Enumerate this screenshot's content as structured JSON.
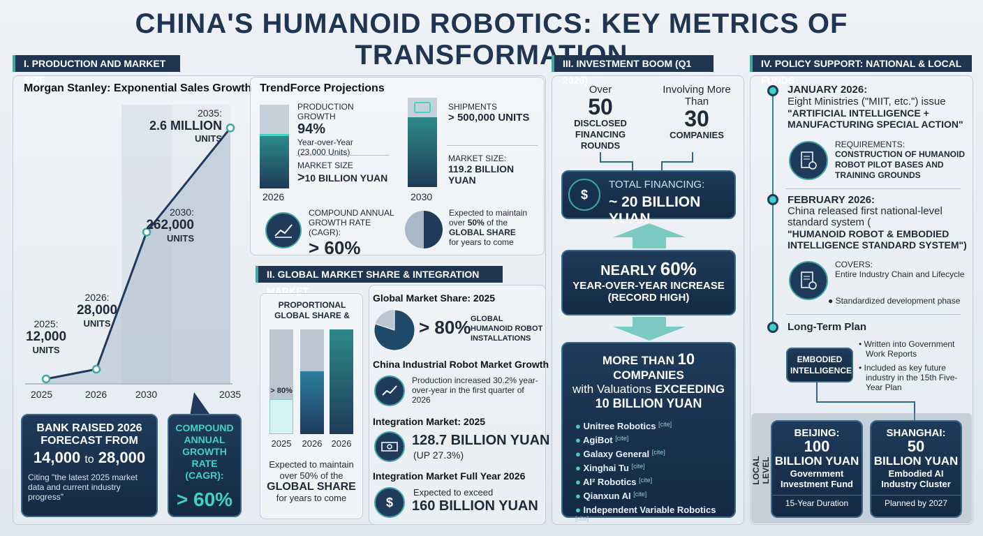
{
  "title": "CHINA'S HUMANOID ROBOTICS: KEY METRICS OF TRANSFORMATION",
  "sec1": {
    "header": "I. PRODUCTION AND MARKET SIZE",
    "ms_title": "Morgan Stanley: Exponential Sales Growth",
    "pts": [
      {
        "year": "2025:",
        "val": "12,000",
        "unit": "UNITS"
      },
      {
        "year": "2026:",
        "val": "28,000",
        "unit": "UNITS"
      },
      {
        "year": "2030:",
        "val": "262,000",
        "unit": "UNITS"
      },
      {
        "year": "2035:",
        "val": "2.6 MILLION",
        "unit": "UNITS"
      }
    ],
    "xticks": [
      "2025",
      "2026",
      "2030",
      "2035"
    ],
    "bank_title": "BANK RAISED 2026 FORECAST FROM",
    "bank_from": "14,000",
    "bank_to_word": "to",
    "bank_to": "28,000",
    "bank_cite": "Citing \"the latest 2025 market data and current industry progress\"",
    "cagr_title": "COMPOUND ANNUAL GROWTH RATE (CAGR):",
    "cagr_val": "> 60%",
    "tf_title": "TrendForce Projections",
    "tf_pg_label": "PRODUCTION GROWTH",
    "tf_pg_val": "94%",
    "tf_pg_sub1": "Year-over-Year",
    "tf_pg_sub2": "(23,000 Units)",
    "tf_ms_label": "MARKET SIZE",
    "tf_ms_prefix": ">",
    "tf_ms_val": "10 BILLION YUAN",
    "tf_y1": "2026",
    "tf_ship_label": "SHIPMENTS",
    "tf_ship_prefix": ">",
    "tf_ship_val": "500,000 UNITS",
    "tf_ms2_label": "MARKET SIZE:",
    "tf_ms2_val": "119.2 BILLION YUAN",
    "tf_y2": "2030",
    "tf_cagr_label": "COMPOUND ANNUAL GROWTH RATE (CAGR):",
    "tf_cagr_val": "> 60%",
    "tf_share_l1": "Expected to maintain",
    "tf_share_l2": "over",
    "tf_share_pct": "50%",
    "tf_share_l3": "of the",
    "tf_share_l4": "GLOBAL SHARE",
    "tf_share_l5": "for years to come"
  },
  "sec2": {
    "header": "II. GLOBAL MARKET SHARE & INTEGRATION MARKET",
    "prop_title": "PROPORTIONAL GLOBAL SHARE &",
    "bar_label": "> 80%",
    "bar_years": [
      "2025",
      "2026",
      "2026"
    ],
    "prop_foot1": "Expected to maintain",
    "prop_foot2": "over 50% of the",
    "prop_foot3": "GLOBAL SHARE",
    "prop_foot4": "for years to come",
    "gms_title": "Global Market Share: 2025",
    "gms_val": "> 80%",
    "gms_desc": "GLOBAL HUMANOID ROBOT INSTALLATIONS",
    "cir_title": "China Industrial Robot Market Growth",
    "cir_desc": "Production increased 30.2% year-over-year in the first quarter of 2026",
    "im_title": "Integration Market: 2025",
    "im_val": "128.7 BILLION YUAN",
    "im_sub": "(UP 27.3%)",
    "imf_title": "Integration Market Full Year 2026",
    "imf_sub": "Expected to exceed",
    "imf_val": "160 BILLION YUAN"
  },
  "chart_data": [
    {
      "type": "line",
      "title": "Morgan Stanley: Exponential Sales Growth",
      "x": [
        "2025",
        "2026",
        "2030",
        "2035"
      ],
      "values": [
        12000,
        28000,
        262000,
        2600000
      ],
      "unit": "UNITS"
    },
    {
      "type": "bar",
      "title": "PROPORTIONAL GLOBAL SHARE &",
      "categories": [
        "2025",
        "2026",
        "2026"
      ],
      "values": [
        null,
        null,
        null
      ],
      "annotation": "> 80%"
    },
    {
      "type": "pie",
      "title": "Global Market Share: 2025",
      "values": [
        80,
        20
      ],
      "label": "> 80%"
    }
  ],
  "sec3": {
    "header": "III. INVESTMENT BOOM (Q1 2026)",
    "over": "Over",
    "n50": "50",
    "rounds": "DISCLOSED FINANCING ROUNDS",
    "involving": "Involving More Than",
    "n30": "30",
    "companies": "COMPANIES",
    "tf_label": "TOTAL FINANCING:",
    "tf_val": "~ 20 BILLION YUAN",
    "nearly": "NEARLY",
    "pct": "60%",
    "yoy": "YEAR-OVER-YEAR INCREASE",
    "record": "(RECORD HIGH)",
    "more_l1": "MORE THAN",
    "more_n": "10",
    "more_l2": "COMPANIES",
    "with_l": "with Valuations",
    "exceeding": "EXCEEDING",
    "tenb": "10 BILLION YUAN",
    "cite": "[cite]",
    "companies_list": [
      "Unitree Robotics",
      "AgiBot",
      "Galaxy General",
      "Xinghai Tu",
      "AI² Robotics",
      "Qianxun AI",
      "Independent Variable Robotics"
    ]
  },
  "sec4": {
    "header": "IV. POLICY SUPPORT: NATIONAL & LOCAL FUNDS",
    "jan_title": "JANUARY 2026:",
    "jan_l1": "Eight Ministries (\"MIIT, etc.\") issue",
    "jan_l2": "\"ARTIFICIAL INTELLIGENCE + MANUFACTURING SPECIAL ACTION\"",
    "req_label": "REQUIREMENTS:",
    "req_text": "CONSTRUCTION OF HUMANOID ROBOT PILOT BASES AND TRAINING GROUNDS",
    "feb_title": "FEBRUARY 2026:",
    "feb_l1": "China released first national-level standard system (",
    "feb_l2": "\"HUMANOID ROBOT & EMBODIED INTELLIGENCE STANDARD SYSTEM\")",
    "cov_label": "COVERS:",
    "cov_text": "Entire Industry Chain and Lifecycle",
    "std_dev": "Standardized development phase",
    "lt_title": "Long-Term Plan",
    "ei": "EMBODIED INTELLIGENCE",
    "lt_b1": "Written into Government Work Reports",
    "lt_b2": "Included as key future industry in the 15th Five-Year Plan",
    "local": "LOCAL LEVEL",
    "bj_city": "BEIJING:",
    "bj_val": "100",
    "bj_unit": "BILLION YUAN",
    "bj_desc": "Government Investment Fund",
    "bj_foot": "15-Year Duration",
    "sh_city": "SHANGHAI:",
    "sh_val": "50",
    "sh_unit": "BILLION YUAN",
    "sh_desc": "Embodied AI Industry Cluster",
    "sh_foot": "Planned by 2027"
  },
  "colors": {
    "navy": "#1f3551",
    "teal": "#3fa7a0",
    "bright_teal": "#3fd2c5"
  }
}
